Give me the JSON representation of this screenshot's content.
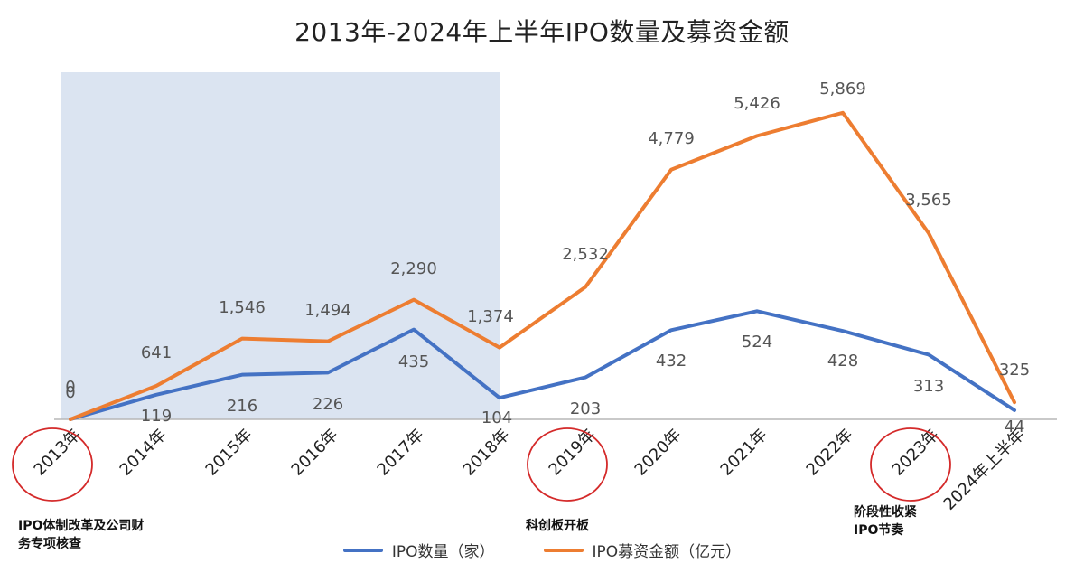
{
  "chart_data": {
    "type": "line",
    "title": "2013年-2024年上半年IPO数量及募资金额",
    "categories": [
      "2013年",
      "2014年",
      "2015年",
      "2016年",
      "2017年",
      "2018年",
      "2019年",
      "2020年",
      "2021年",
      "2022年",
      "2023年",
      "2024年上半年"
    ],
    "series": [
      {
        "name": "IPO数量（家）",
        "color": "#4472C4",
        "values": [
          0,
          119,
          216,
          226,
          435,
          104,
          203,
          432,
          524,
          428,
          313,
          44
        ],
        "labels": [
          "0",
          "119",
          "216",
          "226",
          "435",
          "104",
          "203",
          "432",
          "524",
          "428",
          "313",
          "44"
        ]
      },
      {
        "name": "IPO募资金额（亿元）",
        "color": "#ED7D31",
        "values": [
          0,
          641,
          1546,
          1494,
          2290,
          1374,
          2532,
          4779,
          5426,
          5869,
          3565,
          325
        ],
        "labels": [
          "0",
          "641",
          "1,546",
          "1,494",
          "2,290",
          "1,374",
          "2,532",
          "4,779",
          "5,426",
          "5,869",
          "3,565",
          "325"
        ]
      }
    ],
    "highlight_band": {
      "from": "2013年",
      "to": "2018年",
      "color": "#dbe4f1"
    },
    "circled_categories": [
      "2013年",
      "2019年",
      "2023年"
    ],
    "circle_color": "#d42a2a",
    "annotations": [
      {
        "category": "2013年",
        "text": "IPO体制改革及公司财务专项核查"
      },
      {
        "category": "2019年",
        "text": "科创板开板"
      },
      {
        "category": "2023年",
        "text": "阶段性收紧IPO节奏"
      }
    ],
    "legend_position": "bottom",
    "grid": false
  }
}
